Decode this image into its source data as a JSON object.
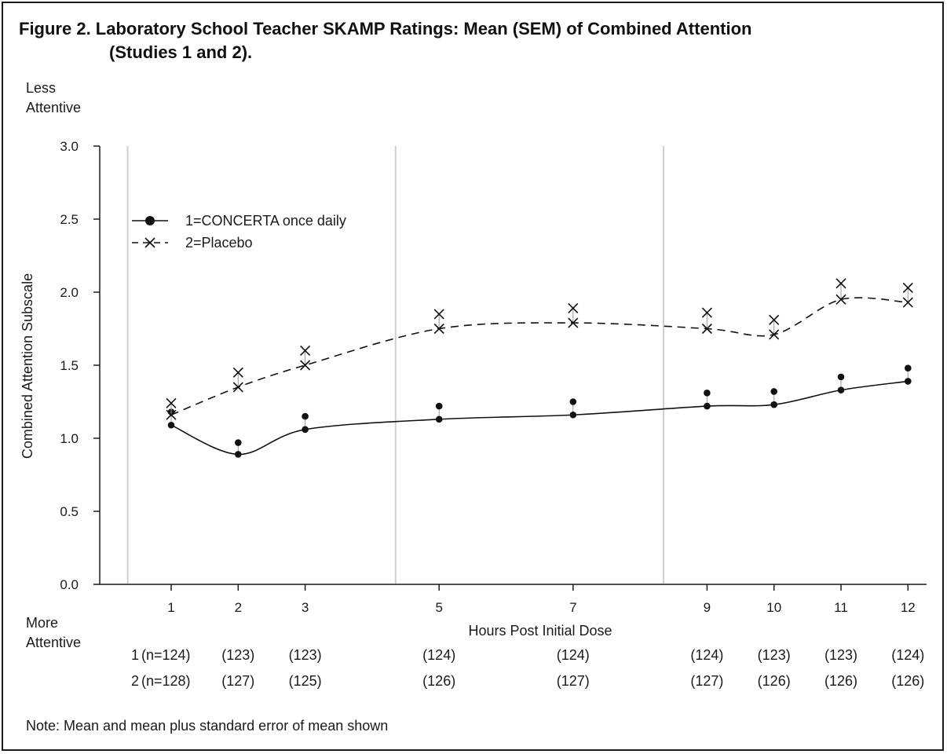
{
  "figure": {
    "title_line1": "Figure 2. Laboratory School Teacher SKAMP Ratings: Mean (SEM) of Combined Attention",
    "title_line2": "(Studies 1 and 2).",
    "top_label_line1": "Less",
    "top_label_line2": "Attentive",
    "bottom_label_line1": "More",
    "bottom_label_line2": "Attentive",
    "note": "Note: Mean and mean plus standard error of mean shown"
  },
  "chart_data": {
    "type": "line",
    "title": "Figure 2. Laboratory School Teacher SKAMP Ratings: Mean (SEM) of Combined Attention (Studies 1 and 2).",
    "xlabel": "Hours Post Initial Dose",
    "ylabel": "Combined Attention Subscale",
    "x": [
      1,
      2,
      3,
      5,
      7,
      9,
      10,
      11,
      12
    ],
    "x_tick_labels": [
      "1",
      "2",
      "3",
      "5",
      "7",
      "9",
      "10",
      "11",
      "12"
    ],
    "ylim": [
      0,
      3.0
    ],
    "y_ticks": [
      0,
      0.5,
      1.0,
      1.5,
      2.0,
      2.5,
      3.0
    ],
    "y_tick_labels": [
      "0.0",
      "0.5",
      "1.0",
      "1.5",
      "2.0",
      "2.5",
      "3.0"
    ],
    "session_dividers_x": [
      0.35,
      4.35,
      8.35
    ],
    "legend_position": "upper-left",
    "series": [
      {
        "name": "1=CONCERTA once daily",
        "marker": "filled-circle",
        "line_style": "solid",
        "mean": [
          1.09,
          0.89,
          1.06,
          1.13,
          1.16,
          1.22,
          1.23,
          1.33,
          1.39
        ],
        "mean_plus_sem": [
          1.18,
          0.97,
          1.15,
          1.22,
          1.25,
          1.31,
          1.32,
          1.42,
          1.48
        ]
      },
      {
        "name": "2=Placebo",
        "marker": "x",
        "line_style": "dashed",
        "mean": [
          1.16,
          1.35,
          1.5,
          1.75,
          1.79,
          1.75,
          1.71,
          1.95,
          1.93
        ],
        "mean_plus_sem": [
          1.24,
          1.45,
          1.6,
          1.85,
          1.89,
          1.86,
          1.81,
          2.06,
          2.03
        ]
      }
    ],
    "n_table": {
      "row1_prefix": "1",
      "row2_prefix": "2",
      "row1": [
        "(n=124)",
        "(123)",
        "(123)",
        "(124)",
        "(124)",
        "(124)",
        "(123)",
        "(123)",
        "(124)"
      ],
      "row2": [
        "(n=128)",
        "(127)",
        "(125)",
        "(126)",
        "(127)",
        "(127)",
        "(126)",
        "(126)",
        "(126)"
      ]
    }
  },
  "colors": {
    "axis": "#1a1a1a",
    "divider": "#cfcfcf",
    "error_bar": "#9a9a9a",
    "series": "#111111"
  }
}
